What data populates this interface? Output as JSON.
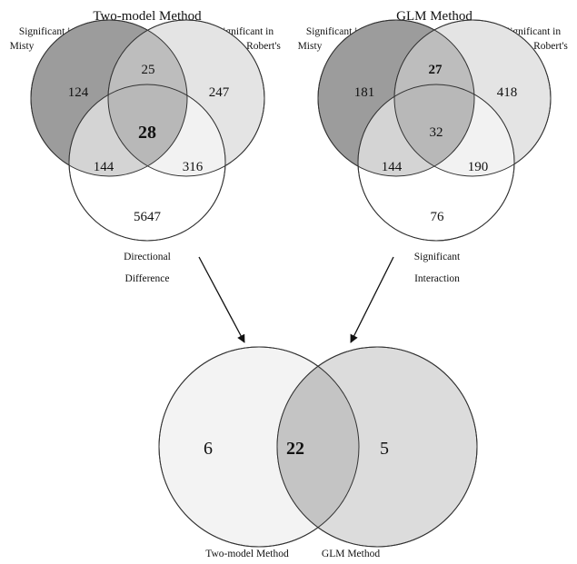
{
  "colors": {
    "misty": "#9c9c9c",
    "roberts": "#e4e4e4",
    "third": "#ffffff",
    "misty_roberts": "#bdbdbd",
    "misty_third": "#d4d4d4",
    "roberts_third": "#f2f2f2",
    "all_three": "#b8b8b8",
    "two_model_bottom": "#f3f3f3",
    "glm_bottom": "#dcdcdc",
    "bottom_overlap": "#c4c4c4"
  },
  "two_model": {
    "title": "Two-model Method",
    "label_misty": [
      "Significant in",
      "Misty"
    ],
    "label_roberts": [
      "Significant in",
      "Robert's"
    ],
    "label_third": [
      "Directional",
      "Difference"
    ],
    "only_misty": "124",
    "only_roberts": "247",
    "misty_roberts": "25",
    "all_three": "28",
    "misty_third": "144",
    "roberts_third": "316",
    "only_third": "5647"
  },
  "glm": {
    "title": "GLM Method",
    "label_misty": [
      "Significant in",
      "Misty"
    ],
    "label_roberts": [
      "Significant in",
      "Robert's"
    ],
    "label_third": [
      "Significant",
      "Interaction"
    ],
    "only_misty": "181",
    "only_roberts": "418",
    "misty_roberts": "27",
    "all_three": "32",
    "misty_third": "144",
    "roberts_third": "190",
    "only_third": "76"
  },
  "bottom": {
    "only_two_model": "6",
    "overlap": "22",
    "only_glm": "5",
    "label_left": "Two-model Method",
    "label_right": "GLM Method"
  }
}
